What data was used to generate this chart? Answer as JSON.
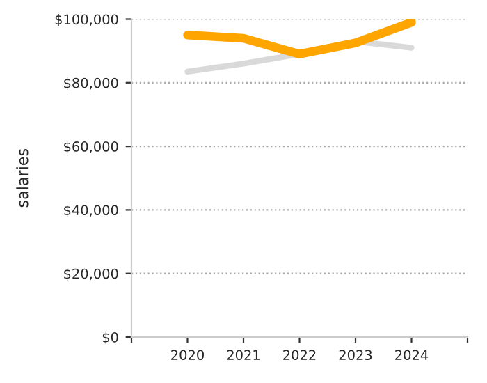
{
  "chart_data": {
    "type": "line",
    "ylabel": "salaries",
    "x": [
      2020,
      2021,
      2022,
      2023,
      2024
    ],
    "series": [
      {
        "color": "#d9d9d9",
        "values": [
          83500,
          86000,
          89000,
          93000,
          91000
        ]
      },
      {
        "color": "#ffa500",
        "values": [
          95000,
          94000,
          89000,
          92500,
          99000
        ]
      }
    ],
    "xlim": [
      2019,
      2025
    ],
    "xticks": [
      {
        "value": 2019,
        "label": null
      },
      2020,
      2021,
      2022,
      2023,
      2024,
      {
        "value": 2025,
        "label": null
      }
    ],
    "ylim": [
      0,
      100000
    ],
    "yticks": [
      {
        "value": 0,
        "label": "$0"
      },
      {
        "value": 20000,
        "label": "$20,000"
      },
      {
        "value": 40000,
        "label": "$40,000"
      },
      {
        "value": 60000,
        "label": "$60,000"
      },
      {
        "value": 80000,
        "label": "$80,000"
      },
      {
        "value": 100000,
        "label": "$100,000"
      }
    ],
    "grid": "y",
    "marker": "none",
    "line_style": "solid"
  }
}
